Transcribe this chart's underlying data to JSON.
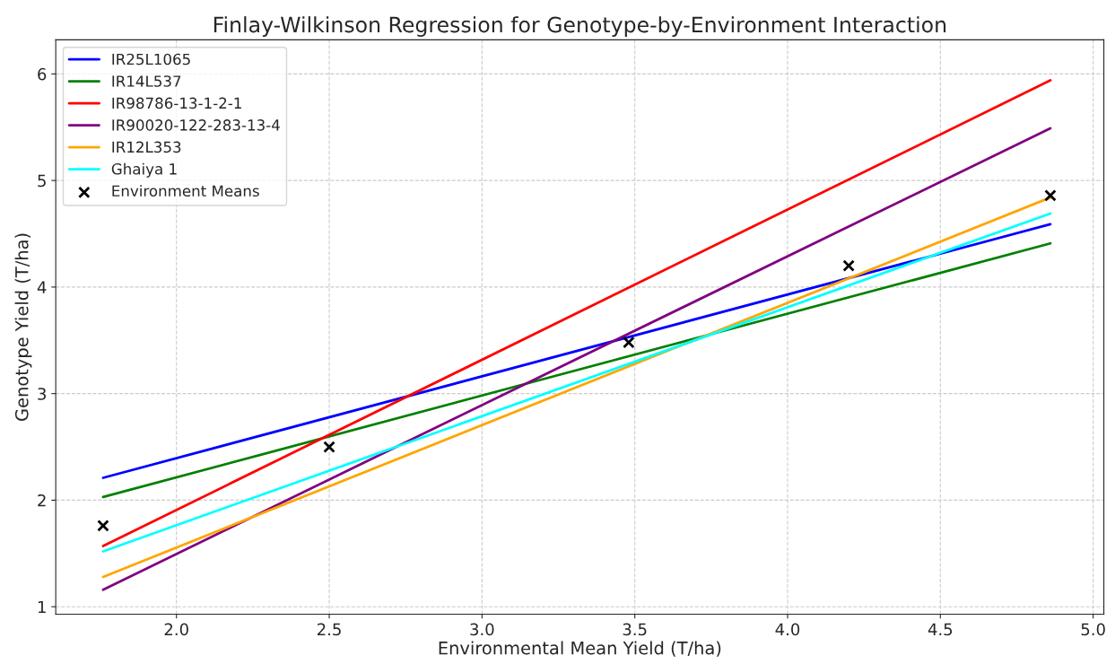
{
  "chart_data": {
    "type": "line",
    "title": "Finlay-Wilkinson Regression for Genotype-by-Environment Interaction",
    "xlabel": "Environmental Mean Yield (T/ha)",
    "ylabel": "Genotype Yield (T/ha)",
    "x": [
      1.76,
      4.86
    ],
    "series": [
      {
        "name": "IR25L1065",
        "color": "#0000ff",
        "values": [
          2.21,
          4.59
        ]
      },
      {
        "name": "IR14L537",
        "color": "#008000",
        "values": [
          2.03,
          4.41
        ]
      },
      {
        "name": "IR98786-13-1-2-1",
        "color": "#ff0000",
        "values": [
          1.57,
          5.94
        ]
      },
      {
        "name": "IR90020-122-283-13-4",
        "color": "#800080",
        "values": [
          1.16,
          5.49
        ]
      },
      {
        "name": "IR12L353",
        "color": "#ffa500",
        "values": [
          1.28,
          4.84
        ]
      },
      {
        "name": "Ghaiya 1",
        "color": "#00ffff",
        "values": [
          1.52,
          4.69
        ]
      },
      {
        "name": "Environment Means",
        "type": "scatter",
        "color": "#000000",
        "marker": "cross",
        "x": [
          1.76,
          2.5,
          3.48,
          4.2,
          4.86
        ],
        "values": [
          1.76,
          2.5,
          3.48,
          4.2,
          4.86
        ]
      }
    ],
    "xlim": [
      1.605,
      5.035
    ],
    "ylim": [
      0.93,
      6.32
    ],
    "xticks": [
      {
        "value": 2.0,
        "label": "2.0"
      },
      {
        "value": 2.5,
        "label": "2.5"
      },
      {
        "value": 3.0,
        "label": "3.0"
      },
      {
        "value": 3.5,
        "label": "3.5"
      },
      {
        "value": 4.0,
        "label": "4.0"
      },
      {
        "value": 4.5,
        "label": "4.5"
      },
      {
        "value": 5.0,
        "label": "5.0"
      }
    ],
    "yticks": [
      1,
      2,
      3,
      4,
      5,
      6
    ],
    "grid": true,
    "legend": "top left"
  }
}
